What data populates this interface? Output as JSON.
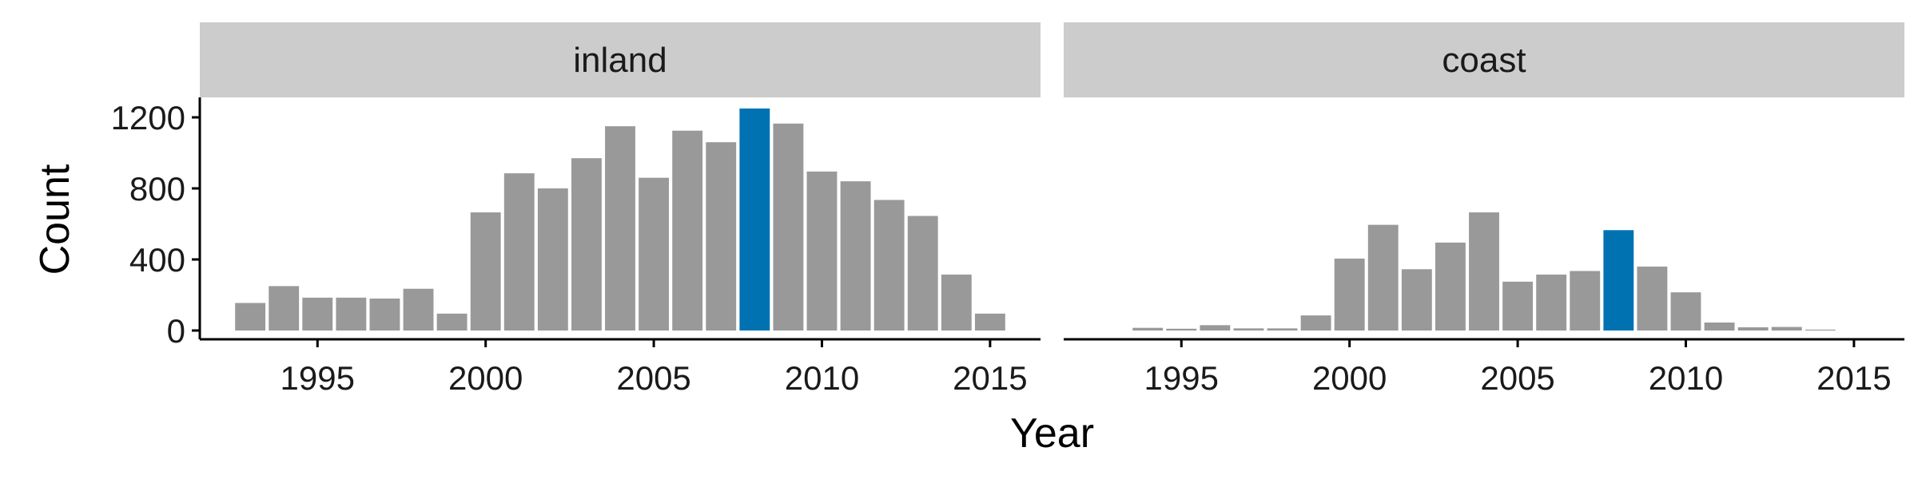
{
  "chart_data": {
    "type": "bar",
    "xlabel": "Year",
    "ylabel": "Count",
    "ylim": [
      0,
      1300
    ],
    "xlim": [
      1991.5,
      2016.5
    ],
    "x_ticks": [
      1995,
      2000,
      2005,
      2010,
      2015
    ],
    "y_ticks": [
      0,
      400,
      800,
      1200
    ],
    "x_tick_labels": [
      "1995",
      "2000",
      "2005",
      "2010",
      "2015"
    ],
    "y_tick_labels": [
      "0",
      "400",
      "800",
      "1200"
    ],
    "highlight_year": 2008,
    "colors": {
      "bar": "#999999",
      "highlight": "#0072B2",
      "strip": "#cccccc",
      "axis": "#000000"
    },
    "panels": [
      {
        "label": "inland",
        "years": [
          1993,
          1994,
          1995,
          1996,
          1997,
          1998,
          1999,
          2000,
          2001,
          2002,
          2003,
          2004,
          2005,
          2006,
          2007,
          2008,
          2009,
          2010,
          2011,
          2012,
          2013,
          2014,
          2015
        ],
        "values": [
          155,
          250,
          185,
          185,
          180,
          235,
          95,
          665,
          885,
          800,
          970,
          1150,
          860,
          1125,
          1060,
          1250,
          1165,
          895,
          840,
          735,
          645,
          315,
          95
        ]
      },
      {
        "label": "coast",
        "years": [
          1994,
          1995,
          1996,
          1997,
          1998,
          1999,
          2000,
          2001,
          2002,
          2003,
          2004,
          2005,
          2006,
          2007,
          2008,
          2009,
          2010,
          2011,
          2012,
          2013,
          2014
        ],
        "values": [
          15,
          10,
          30,
          12,
          12,
          85,
          405,
          595,
          345,
          495,
          665,
          275,
          315,
          335,
          565,
          360,
          215,
          45,
          18,
          20,
          5
        ]
      }
    ]
  }
}
